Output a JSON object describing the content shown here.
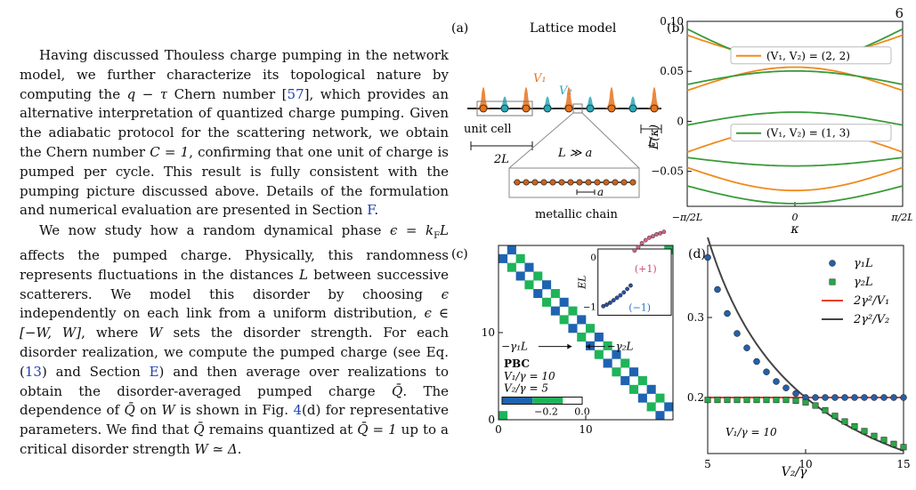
{
  "page_number": "6",
  "text": {
    "para1": [
      {
        "t": "Having discussed Thouless charge pumping in the network model, we further characterize its topological nature by computing the "
      },
      {
        "t": "q − τ",
        "i": true
      },
      {
        "t": " Chern number ["
      },
      {
        "t": "57",
        "ref": true
      },
      {
        "t": "], which provides an alternative interpretation of quantized charge pumping. Given the adiabatic protocol for the scattering network, we obtain the Chern number "
      },
      {
        "t": "C = 1",
        "i": true
      },
      {
        "t": ", confirming that one unit of charge is pumped per cycle. This result is fully consistent with the pumping picture discussed above. Details of the formulation and numerical evaluation are presented in Section "
      },
      {
        "t": "F",
        "ref": true
      },
      {
        "t": "."
      }
    ],
    "para2": [
      {
        "t": "We now study how a random dynamical phase "
      },
      {
        "t": "ϵ = k",
        "i": true
      },
      {
        "t": "F",
        "sub": true
      },
      {
        "t": "L",
        "i": true
      },
      {
        "t": " affects the pumped charge. Physically, this randomness represents fluctuations in the distances "
      },
      {
        "t": "L",
        "i": true
      },
      {
        "t": " between successive scatterers. We model this disorder by choosing "
      },
      {
        "t": "ϵ",
        "i": true
      },
      {
        "t": " independently on each link from a uniform distribution, "
      },
      {
        "t": "ϵ ∈ [−W, W]",
        "i": true
      },
      {
        "t": ", where "
      },
      {
        "t": "W",
        "i": true
      },
      {
        "t": " sets the disorder strength. For each disorder realization, we compute the pumped charge (see Eq. ("
      },
      {
        "t": "13",
        "ref": true
      },
      {
        "t": ") and Section "
      },
      {
        "t": "E",
        "ref": true
      },
      {
        "t": ") and then average over realizations to obtain the disorder-averaged pumped charge "
      },
      {
        "t": "Q̄",
        "i": true
      },
      {
        "t": ". The dependence of "
      },
      {
        "t": "Q̄",
        "i": true
      },
      {
        "t": " on "
      },
      {
        "t": "W",
        "i": true
      },
      {
        "t": " is shown in Fig. "
      },
      {
        "t": "4",
        "ref": true
      },
      {
        "t": "(d) for representative parameters. We find that "
      },
      {
        "t": "Q̄",
        "i": true
      },
      {
        "t": " remains quantized at "
      },
      {
        "t": "Q̄ = 1",
        "i": true
      },
      {
        "t": " up to a critical disorder strength "
      },
      {
        "t": "W ≃ Δ",
        "i": true
      },
      {
        "t": "."
      }
    ]
  },
  "panel_a": {
    "label": "(a)",
    "title": "Lattice model",
    "v1": "V₁",
    "v2": "V₂",
    "unit_cell": "unit cell",
    "two_l": "2L",
    "l": "L",
    "l_gg_a": "L ≫ a",
    "a": "a",
    "chain": "metallic chain",
    "v1_color": "#e8731c",
    "v2_color": "#2aa8b8"
  },
  "chart_data": [
    {
      "panel": "(b)",
      "type": "line",
      "xlabel": "κ",
      "ylabel": "E(κ)",
      "xticks": [
        "−π/2L",
        "0",
        "π/2L"
      ],
      "yticks": [
        "0.10",
        "0.05",
        "0",
        "−0.05"
      ],
      "ylim": [
        -0.085,
        0.1
      ],
      "legend": [
        "(V₁, V₂) = (2, 2)",
        "(V₁, V₂) = (1, 3)"
      ],
      "series": [
        {
          "name": "(V₁, V₂) = (2, 2)",
          "color": "#f08a1c",
          "bands": [
            [
              0.0862,
              0.0625
            ],
            [
              0.0308,
              0.0542
            ],
            [
              -0.0308,
              -0.0067
            ],
            [
              -0.0462,
              -0.0692
            ]
          ]
        },
        {
          "name": "(V₁, V₂) = (1, 3)",
          "color": "#3a9a3a",
          "bands": [
            [
              0.0923,
              0.0585
            ],
            [
              0.0369,
              0.0504
            ],
            [
              -0.0038,
              0.0092
            ],
            [
              -0.0362,
              -0.0446
            ],
            [
              -0.0646,
              -0.0823
            ]
          ]
        }
      ]
    },
    {
      "panel": "(c)",
      "type": "heatmap",
      "xticks": [
        "0",
        "10"
      ],
      "yticks": [
        "10",
        "0"
      ],
      "n": 20,
      "colorbar_ticks": [
        "−0.2",
        "0.0"
      ],
      "annotations": {
        "g1": "−γ₁L",
        "g2": "−γ₂L",
        "pbc": "PBC",
        "v1": "V₁/γ = 10",
        "v2": "V₂/γ = 5"
      },
      "colors": {
        "blue": "#1f63b0",
        "green": "#1fb45a"
      },
      "inset": {
        "ylabel": "EL",
        "yticks": [
          "0",
          "−1"
        ],
        "labels": [
          "(+1)",
          "(−1)"
        ],
        "upper": [
          0.05,
          0.12,
          0.2,
          0.26,
          0.31,
          0.34,
          0.38,
          0.4,
          0.43
        ],
        "lower": [
          -1.0,
          -0.97,
          -0.93,
          -0.88,
          -0.83,
          -0.78,
          -0.72,
          -0.65,
          -0.58
        ]
      }
    },
    {
      "panel": "(d)",
      "type": "scatter",
      "xlabel": "V₂/γ",
      "xticks": [
        "5",
        "10",
        "15"
      ],
      "yticks": [
        "0.3",
        "0.2"
      ],
      "xlim": [
        5,
        15
      ],
      "ylim": [
        0.13,
        0.39
      ],
      "annotation": "V₁/γ = 10",
      "legend": [
        "γ₁L",
        "γ₂L",
        "2γ²/V₁",
        "2γ²/V₂"
      ],
      "series": [
        {
          "name": "γ₁L",
          "color": "#2360a8",
          "x": [
            5,
            5.5,
            6,
            6.5,
            7,
            7.5,
            8,
            8.5,
            9,
            9.5,
            10,
            10.5,
            11,
            11.5,
            12,
            12.5,
            13,
            13.5,
            14,
            14.5,
            15
          ],
          "y": [
            0.375,
            0.335,
            0.305,
            0.28,
            0.262,
            0.245,
            0.232,
            0.22,
            0.212,
            0.205,
            0.2,
            0.2,
            0.2,
            0.2,
            0.2,
            0.2,
            0.2,
            0.2,
            0.2,
            0.2,
            0.2
          ]
        },
        {
          "name": "γ₂L",
          "color": "#28a845",
          "x": [
            5,
            5.5,
            6,
            6.5,
            7,
            7.5,
            8,
            8.5,
            9,
            9.5,
            10,
            10.5,
            11,
            11.5,
            12,
            12.5,
            13,
            13.5,
            14,
            14.5,
            15
          ],
          "y": [
            0.197,
            0.197,
            0.197,
            0.197,
            0.197,
            0.197,
            0.197,
            0.197,
            0.197,
            0.196,
            0.194,
            0.19,
            0.184,
            0.177,
            0.17,
            0.164,
            0.158,
            0.152,
            0.147,
            0.142,
            0.138
          ]
        },
        {
          "name": "2γ²/V₁",
          "color": "#e8402a",
          "y_const": 0.2
        },
        {
          "name": "2γ²/V₂",
          "color": "#444444",
          "formula": "2/x"
        }
      ]
    }
  ]
}
